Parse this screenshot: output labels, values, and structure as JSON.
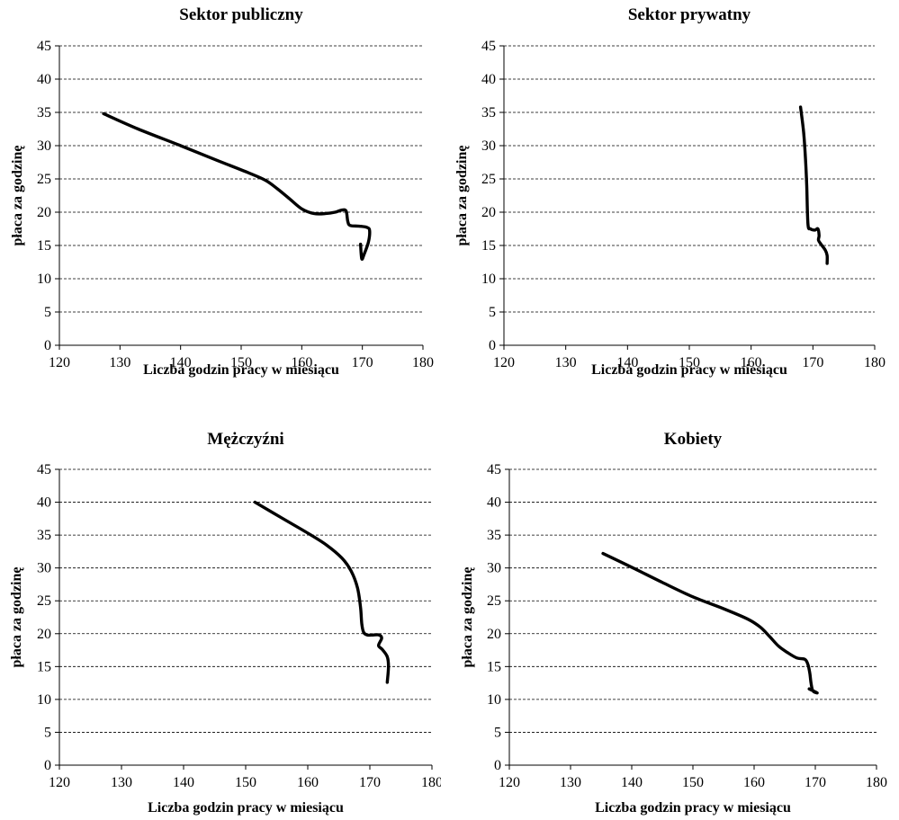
{
  "chart_data": [
    {
      "type": "line",
      "title": "Sektor publiczny",
      "xlabel": "Liczba godzin pracy w miesiącu",
      "ylabel": "płaca za godzinę",
      "xlim": [
        120,
        180
      ],
      "ylim": [
        0,
        45
      ],
      "xticks": [
        "120",
        "130",
        "140",
        "150",
        "160",
        "170",
        "180"
      ],
      "yticks": [
        "0",
        "5",
        "10",
        "15",
        "20",
        "25",
        "30",
        "35",
        "40",
        "45"
      ],
      "grid": "horizontal dashed",
      "series": [
        {
          "color": "#000000",
          "x": [
            127.3,
            133,
            140,
            146,
            151,
            154,
            156,
            158,
            160,
            162,
            164,
            165.5,
            166.5,
            167.3,
            167.6,
            168,
            169.5,
            170.8,
            171.2,
            171,
            170.3,
            169.9,
            169.7
          ],
          "y": [
            34.8,
            32.5,
            30,
            27.8,
            26,
            24.8,
            23.5,
            22,
            20.5,
            19.8,
            19.8,
            20,
            20.3,
            20.2,
            18.6,
            18,
            17.9,
            17.7,
            17.2,
            15.5,
            13.7,
            13,
            15.2
          ]
        }
      ]
    },
    {
      "type": "line",
      "title": "Sektor prywatny",
      "xlabel": "Liczba godzin pracy w miesiącu",
      "ylabel": "płaca za godzinę",
      "xlim": [
        120,
        180
      ],
      "ylim": [
        0,
        45
      ],
      "xticks": [
        "120",
        "130",
        "140",
        "150",
        "160",
        "170",
        "180"
      ],
      "yticks": [
        "0",
        "5",
        "10",
        "15",
        "20",
        "25",
        "30",
        "35",
        "40",
        "45"
      ],
      "grid": "horizontal dashed",
      "series": [
        {
          "color": "#000000",
          "x": [
            168,
            168.5,
            168.8,
            169,
            169.2,
            169.6,
            170.3,
            170.8,
            171,
            170.9,
            171.3,
            172,
            172.3,
            172.3
          ],
          "y": [
            35.8,
            32,
            28,
            24,
            18.2,
            17.5,
            17.3,
            17.5,
            16.5,
            15.8,
            15.2,
            14.3,
            13.5,
            12.3
          ]
        }
      ]
    },
    {
      "type": "line",
      "title": "Mężczyźni",
      "xlabel": "Liczba godzin pracy w miesiącu",
      "ylabel": "płaca za godzinę",
      "xlim": [
        120,
        180
      ],
      "ylim": [
        0,
        45
      ],
      "xticks": [
        "120",
        "130",
        "140",
        "150",
        "160",
        "170",
        "180"
      ],
      "yticks": [
        "0",
        "5",
        "10",
        "15",
        "20",
        "25",
        "30",
        "35",
        "40",
        "45"
      ],
      "grid": "horizontal dashed",
      "series": [
        {
          "color": "#000000",
          "x": [
            151.5,
            156,
            160,
            163,
            165.5,
            167,
            168,
            168.5,
            168.7,
            169,
            169.6,
            170.5,
            171.5,
            171.9,
            171.4,
            172,
            172.8,
            173,
            172.8
          ],
          "y": [
            40,
            37.5,
            35.3,
            33.5,
            31.5,
            29.5,
            27,
            24,
            21.5,
            20.2,
            19.8,
            19.8,
            19.8,
            19.3,
            18.2,
            17.6,
            16.5,
            15,
            12.6
          ]
        }
      ]
    },
    {
      "type": "line",
      "title": "Kobiety",
      "xlabel": "Liczba godzin pracy w miesiącu",
      "ylabel": "płaca za godzinę",
      "xlim": [
        120,
        180
      ],
      "ylim": [
        0,
        45
      ],
      "xticks": [
        "120",
        "130",
        "140",
        "150",
        "160",
        "170",
        "180"
      ],
      "yticks": [
        "0",
        "5",
        "10",
        "15",
        "20",
        "25",
        "30",
        "35",
        "40",
        "45"
      ],
      "grid": "horizontal dashed",
      "series": [
        {
          "color": "#000000",
          "x": [
            135.3,
            140,
            145,
            150,
            155,
            159,
            161,
            162.5,
            164,
            165.5,
            167,
            168.3,
            168.8,
            169.1,
            169.3,
            169.6,
            170.3,
            169
          ],
          "y": [
            32.2,
            30.1,
            27.8,
            25.6,
            23.8,
            22.2,
            21,
            19.6,
            18.1,
            17.1,
            16.3,
            16.1,
            15.3,
            14,
            12.5,
            11.3,
            11,
            11.6
          ]
        }
      ]
    }
  ]
}
